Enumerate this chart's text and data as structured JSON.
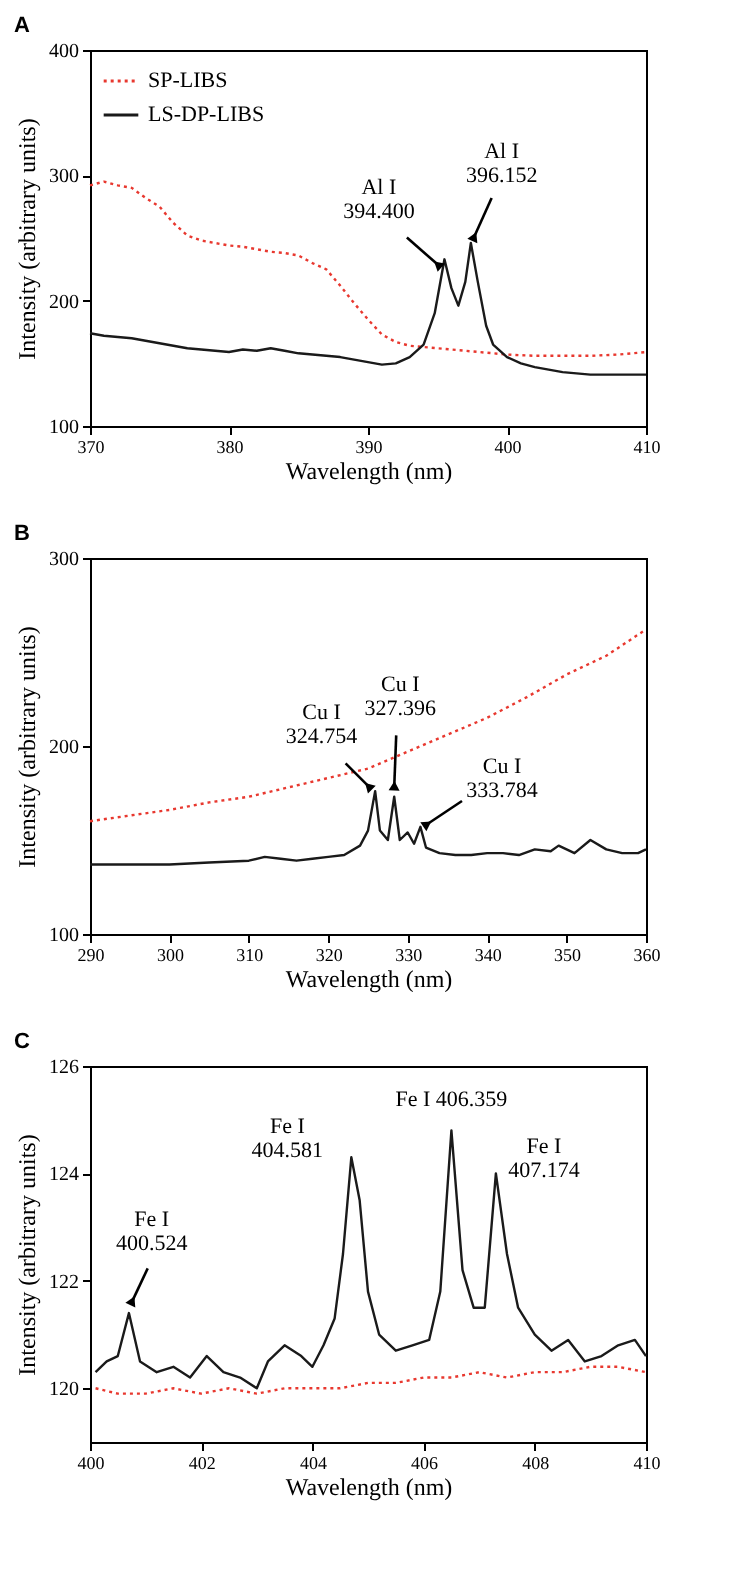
{
  "chart_data": [
    {
      "type": "line",
      "title": "A",
      "xlabel": "Wavelength (nm)",
      "ylabel": "Intensity (arbitrary units)",
      "xlim": [
        370,
        410
      ],
      "xticks": [
        370,
        380,
        390,
        400,
        410
      ],
      "ylim": [
        100,
        400
      ],
      "yticks": [
        100,
        200,
        300,
        400
      ],
      "legend": "top left",
      "grid": false,
      "series": [
        {
          "name": "SP-LIBS",
          "color": "#e8382f",
          "line_style": "dotted",
          "x": [
            370,
            371,
            372,
            373,
            374,
            375,
            376,
            377,
            378,
            379,
            380,
            381,
            382,
            383,
            384,
            385,
            386,
            387,
            388,
            389,
            390,
            391,
            392,
            393,
            394,
            395,
            396,
            397,
            398,
            399,
            400,
            402,
            404,
            406,
            408,
            410
          ],
          "values": [
            292,
            295,
            292,
            290,
            282,
            275,
            262,
            252,
            248,
            246,
            244,
            243,
            241,
            239,
            238,
            236,
            230,
            225,
            212,
            198,
            185,
            173,
            167,
            164,
            163,
            162,
            161,
            160,
            159,
            158,
            157,
            156,
            156,
            156,
            157,
            159
          ]
        },
        {
          "name": "LS-DP-LIBS",
          "color": "#1a1a1a",
          "line_style": "solid",
          "x": [
            370,
            371,
            372,
            373,
            374,
            375,
            376,
            377,
            378,
            379,
            380,
            381,
            382,
            383,
            384,
            385,
            386,
            387,
            388,
            389,
            390,
            391,
            392,
            393,
            394,
            394.8,
            395.5,
            396.0,
            396.5,
            397.0,
            397.4,
            397.9,
            398.5,
            399,
            400,
            401,
            402,
            403,
            404,
            405,
            406,
            408,
            410
          ],
          "values": [
            174,
            172,
            171,
            170,
            168,
            166,
            164,
            162,
            161,
            160,
            159,
            161,
            160,
            162,
            160,
            158,
            157,
            156,
            155,
            153,
            151,
            149,
            150,
            155,
            165,
            190,
            233,
            210,
            196,
            215,
            246,
            215,
            180,
            165,
            155,
            150,
            147,
            145,
            143,
            142,
            141,
            141,
            141
          ]
        }
      ],
      "annotations": [
        {
          "text": "Al I\n394.400",
          "x": 395.1,
          "y": 228
        },
        {
          "text": "Al I\n396.152",
          "x": 397.6,
          "y": 250
        }
      ]
    },
    {
      "type": "line",
      "title": "B",
      "xlabel": "Wavelength (nm)",
      "ylabel": "Intensity (arbitrary units)",
      "xlim": [
        290,
        360
      ],
      "xticks": [
        290,
        300,
        310,
        320,
        330,
        340,
        350,
        360
      ],
      "ylim": [
        100,
        300
      ],
      "yticks": [
        100,
        200,
        300
      ],
      "legend": "top left",
      "grid": false,
      "series": [
        {
          "name": "SP-LIBS",
          "color": "#e8382f",
          "line_style": "dotted",
          "x": [
            290,
            295,
            300,
            305,
            310,
            315,
            320,
            325,
            330,
            335,
            340,
            345,
            350,
            355,
            360
          ],
          "values": [
            160,
            163,
            166,
            170,
            173,
            178,
            183,
            188,
            197,
            206,
            215,
            226,
            238,
            248,
            262
          ]
        },
        {
          "name": "LS-DP-LIBS",
          "color": "#1a1a1a",
          "line_style": "solid",
          "x": [
            290,
            300,
            305,
            310,
            312,
            314,
            316,
            318,
            320,
            322,
            324,
            325,
            325.9,
            326.5,
            327.5,
            328.3,
            329,
            330,
            330.8,
            331.6,
            332.3,
            334,
            336,
            338,
            340,
            342,
            344,
            346,
            348,
            349,
            351,
            353,
            355,
            357,
            359,
            360
          ],
          "values": [
            137,
            137,
            138,
            139,
            141,
            140,
            139,
            140,
            141,
            142,
            147,
            155,
            176,
            155,
            150,
            173,
            150,
            154,
            148,
            157,
            146,
            143,
            142,
            142,
            143,
            143,
            142,
            145,
            144,
            147,
            143,
            150,
            145,
            143,
            143,
            145
          ]
        }
      ],
      "annotations": [
        {
          "text": "Cu I\n324.754",
          "x": 325.2,
          "y": 178
        },
        {
          "text": "Cu I\n327.396",
          "x": 328.3,
          "y": 178
        },
        {
          "text": "Cu I\n333.784",
          "x": 332.3,
          "y": 158
        }
      ]
    },
    {
      "type": "line",
      "title": "C",
      "xlabel": "Wavelength (nm)",
      "ylabel": "Intensity (arbitrary units)",
      "xlim": [
        400,
        410
      ],
      "xticks": [
        400,
        402,
        404,
        406,
        408,
        410
      ],
      "ylim": [
        119,
        126
      ],
      "yticks": [
        120,
        122,
        124,
        126
      ],
      "legend": "top left",
      "grid": false,
      "series": [
        {
          "name": "SP-LIBS",
          "color": "#e8382f",
          "line_style": "dotted",
          "x": [
            400.1,
            400.5,
            401,
            401.5,
            402,
            402.5,
            403,
            403.5,
            404,
            404.5,
            405,
            405.5,
            406,
            406.5,
            407,
            407.5,
            408,
            408.5,
            409,
            409.5,
            410
          ],
          "values": [
            120.0,
            119.9,
            119.9,
            120.0,
            119.9,
            120.0,
            119.9,
            120.0,
            120.0,
            120.0,
            120.1,
            120.1,
            120.2,
            120.2,
            120.3,
            120.2,
            120.3,
            120.3,
            120.4,
            120.4,
            120.3
          ]
        },
        {
          "name": "LS-DP-LIBS",
          "color": "#1a1a1a",
          "line_style": "solid",
          "x": [
            400.1,
            400.3,
            400.5,
            400.7,
            400.9,
            401.2,
            401.5,
            401.8,
            402.1,
            402.4,
            402.7,
            403,
            403.2,
            403.5,
            403.8,
            404.0,
            404.2,
            404.4,
            404.55,
            404.7,
            404.85,
            405.0,
            405.2,
            405.5,
            405.8,
            406.1,
            406.3,
            406.5,
            406.7,
            406.9,
            407.1,
            407.3,
            407.5,
            407.7,
            408.0,
            408.3,
            408.6,
            408.9,
            409.2,
            409.5,
            409.8,
            410
          ],
          "values": [
            120.3,
            120.5,
            120.6,
            121.4,
            120.5,
            120.3,
            120.4,
            120.2,
            120.6,
            120.3,
            120.2,
            120.0,
            120.5,
            120.8,
            120.6,
            120.4,
            120.8,
            121.3,
            122.5,
            124.3,
            123.5,
            121.8,
            121.0,
            120.7,
            120.8,
            120.9,
            121.8,
            124.8,
            122.2,
            121.5,
            121.5,
            124.0,
            122.5,
            121.5,
            121.0,
            120.7,
            120.9,
            120.5,
            120.6,
            120.8,
            120.9,
            120.6
          ]
        }
      ],
      "annotations": [
        {
          "text": "Fe I\n400.524",
          "x": 400.75,
          "y": 121.6
        },
        {
          "text": "Fe I\n404.581",
          "x": 404.7,
          "y": 124.3
        },
        {
          "text": "Fe I 406.359",
          "x": 406.5,
          "y": 124.8
        },
        {
          "text": "Fe I\n407.174",
          "x": 407.3,
          "y": 124.0
        }
      ]
    }
  ]
}
